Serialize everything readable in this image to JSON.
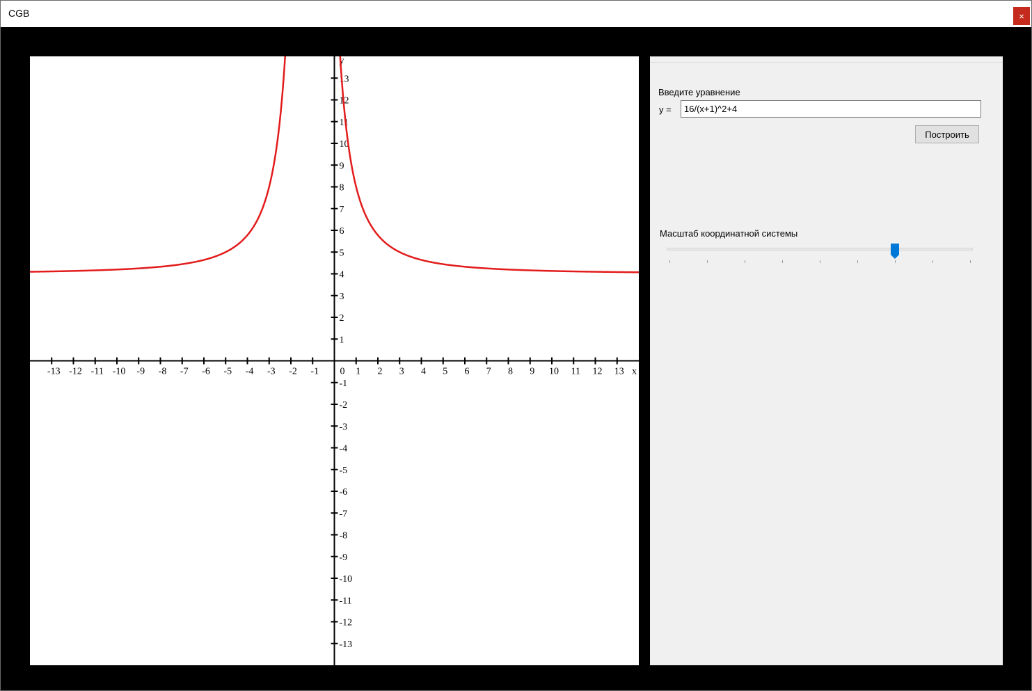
{
  "window": {
    "title": "CGB",
    "close_glyph": "×"
  },
  "graph": {
    "x_axis_label": "x",
    "y_axis_label": "y",
    "origin_label": "0",
    "range": [
      -14,
      14
    ],
    "tick_values": [
      -13,
      -12,
      -11,
      -10,
      -9,
      -8,
      -7,
      -6,
      -5,
      -4,
      -3,
      -2,
      -1,
      1,
      2,
      3,
      4,
      5,
      6,
      7,
      8,
      9,
      10,
      11,
      12,
      13
    ],
    "curve_color": "#e31b1b",
    "axis_color": "#000000"
  },
  "panel": {
    "equation_label": "Введите уравнение",
    "y_prefix": "y =",
    "equation_value": "16/(x+1)^2+4",
    "plot_button_label": "Построить",
    "scale_label": "Масштаб координатной системы",
    "scale_slider": {
      "min": 0,
      "max": 8,
      "value": 6,
      "accent_color": "#0078d7"
    }
  }
}
